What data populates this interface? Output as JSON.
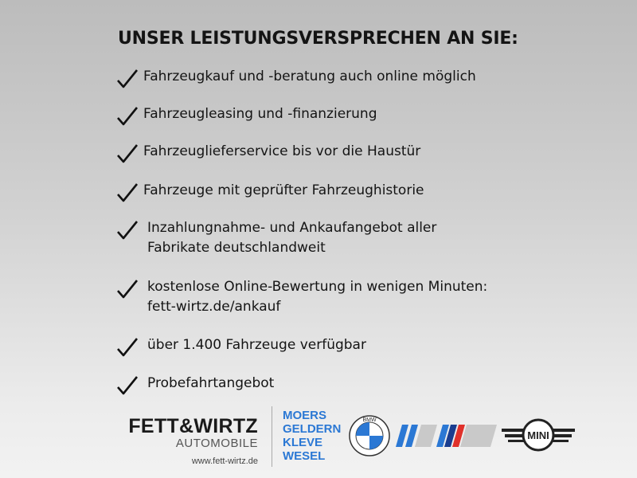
{
  "title": "UNSER LEISTUNGSVERSPRECHEN AN SIE:",
  "items": [
    {
      "lines": [
        "Fahrzeugkauf und -beratung auch online möglich"
      ]
    },
    {
      "lines": [
        "Fahrzeugleasing und -finanzierung"
      ]
    },
    {
      "lines": [
        "Fahrzeuglieferservice bis vor die Haustür"
      ]
    },
    {
      "lines": [
        "Fahrzeuge mit geprüfter Fahrzeughistorie"
      ]
    },
    {
      "lines": [
        "Inzahlungnahme- und Ankaufangebot aller",
        "Fabrikate deutschlandweit"
      ]
    },
    {
      "lines": [
        "kostenlose Online-Bewertung in wenigen Minuten:",
        "fett-wirtz.de/ankauf"
      ]
    },
    {
      "lines": [
        "über 1.400 Fahrzeuge verfügbar"
      ]
    },
    {
      "lines": [
        "Probefahrtangebot"
      ]
    }
  ],
  "footer": {
    "company": "FETT&WIRTZ",
    "company_sub": "AUTOMOBILE",
    "url": "www.fett-wirtz.de",
    "cities": [
      "MOERS",
      "GELDERN",
      "KLEVE",
      "WESEL"
    ],
    "brands": {
      "bmw": "BMW",
      "mini": "MINI"
    },
    "city_color": "#2b78d4",
    "icons": [
      "check-icon",
      "bmw-logo",
      "bmw-i-logo",
      "bmw-m-logo",
      "mini-logo"
    ]
  }
}
